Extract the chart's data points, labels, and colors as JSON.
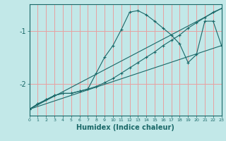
{
  "xlabel": "Humidex (Indice chaleur)",
  "bg_color": "#c2e8e8",
  "grid_color": "#e8a0a0",
  "line_color": "#1a6868",
  "x_ticks": [
    0,
    1,
    2,
    3,
    4,
    5,
    6,
    7,
    8,
    9,
    10,
    11,
    12,
    13,
    14,
    15,
    16,
    17,
    18,
    19,
    20,
    21,
    22,
    23
  ],
  "xlim": [
    0,
    23
  ],
  "ylim": [
    -2.6,
    -0.5
  ],
  "yticks": [
    -2,
    -1
  ],
  "line1_x": [
    0,
    1,
    2,
    3,
    4,
    5,
    6,
    7,
    8,
    9,
    10,
    11,
    12,
    13,
    14,
    15,
    16,
    17,
    18,
    19,
    20,
    21,
    22,
    23
  ],
  "line1_y": [
    -2.48,
    -2.38,
    -2.3,
    -2.22,
    -2.18,
    -2.18,
    -2.14,
    -2.1,
    -1.8,
    -1.5,
    -1.28,
    -0.98,
    -0.65,
    -0.62,
    -0.7,
    -0.82,
    -0.95,
    -1.08,
    -1.25,
    -1.6,
    -1.45,
    -0.82,
    -0.82,
    -1.28
  ],
  "line2_x": [
    0,
    1,
    2,
    3,
    4,
    5,
    6,
    7,
    8,
    9,
    10,
    11,
    12,
    13,
    14,
    15,
    16,
    17,
    18,
    19,
    20,
    21,
    22,
    23
  ],
  "line2_y": [
    -2.48,
    -2.38,
    -2.3,
    -2.22,
    -2.18,
    -2.18,
    -2.14,
    -2.1,
    -2.05,
    -1.98,
    -1.9,
    -1.8,
    -1.7,
    -1.6,
    -1.5,
    -1.4,
    -1.28,
    -1.18,
    -1.08,
    -0.95,
    -0.85,
    -0.75,
    -0.65,
    -0.58
  ],
  "line3_x": [
    0,
    23
  ],
  "line3_y": [
    -2.48,
    -1.28
  ],
  "line4_x": [
    0,
    23
  ],
  "line4_y": [
    -2.48,
    -0.58
  ]
}
